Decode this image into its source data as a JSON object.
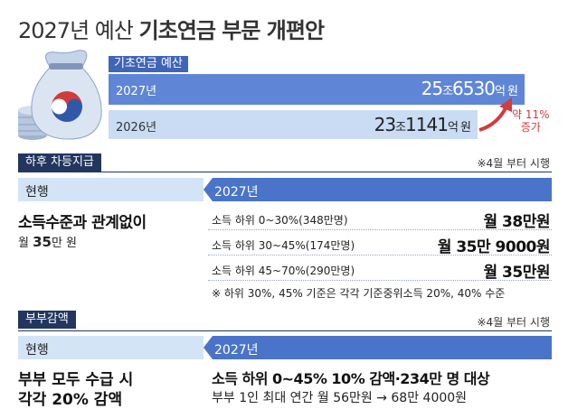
{
  "title": {
    "light": "2027년 예산",
    "bold": "기초연금 부문 개편안"
  },
  "budget": {
    "tag": "기초연금 예산",
    "y2027": {
      "year": "2027년",
      "amount_a": "25",
      "unit_a": "조",
      "amount_b": "6530",
      "unit_b": "억 원"
    },
    "y2026": {
      "year": "2026년",
      "amount_a": "23",
      "unit_a": "조",
      "amount_b": "1141",
      "unit_b": "억 원"
    },
    "increase_line1": "약 11%",
    "increase_line2": "증가"
  },
  "section1": {
    "tag": "하후 차등지급",
    "note": "※4월 부터 시행",
    "head_current": "현행",
    "head_new": "2027년",
    "current_main": "소득수준과 관계없이",
    "current_sub_pre": "월 ",
    "current_sub_num": "35",
    "current_sub_post": "만 원",
    "rows": [
      {
        "label": "소득 하위 0~30%(348만명)",
        "value": "월 38만원"
      },
      {
        "label": "소득 하위 30~45%(174만명)",
        "value": "월 35만 9000원"
      },
      {
        "label": "소득 하위 45~70%(290만명)",
        "value": "월 35만원"
      }
    ],
    "footnote": "※ 하위 30%, 45% 기준은 각각 기준중위소득 20%, 40% 수준"
  },
  "section2": {
    "tag": "부부감액",
    "note": "※4월 부터 시행",
    "head_current": "현행",
    "head_new": "2027년",
    "current_main": "부부 모두 수급 시",
    "current_cut": "각각 20% 감액",
    "new_main": "소득 하위 0~45% 10% 감액·234만 명 대상",
    "new_cut": "부부 1인 최대 연간 월 56만원 → 68만 4000원"
  },
  "colors": {
    "navy": "#22365f",
    "blue": "#4a74c9",
    "light_blue": "#d4e4f7",
    "red": "#d43c3c"
  }
}
